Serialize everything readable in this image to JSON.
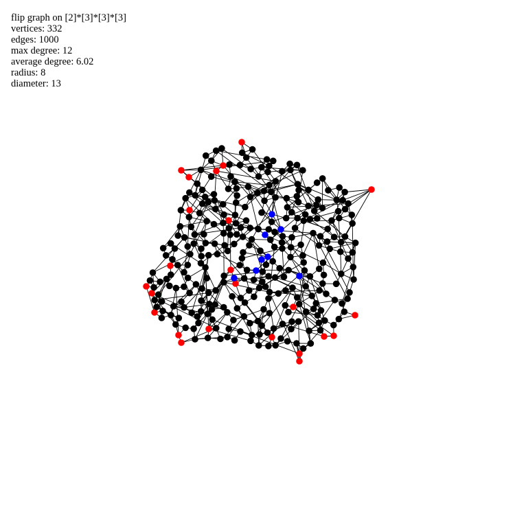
{
  "stats": {
    "title": "flip graph on [2]*[3]*[3]*[3]",
    "vertices": "vertices: 332",
    "edges": "edges: 1000",
    "max_degree": "max degree: 12",
    "average_degree": "average degree: 6.02",
    "radius": "radius: 8",
    "diameter": "diameter: 13"
  },
  "colors": {
    "vertex": "#000000",
    "highlight_red": "#ff0000",
    "highlight_blue": "#0000ff",
    "edge": "#000000",
    "background": "#ffffff"
  }
}
